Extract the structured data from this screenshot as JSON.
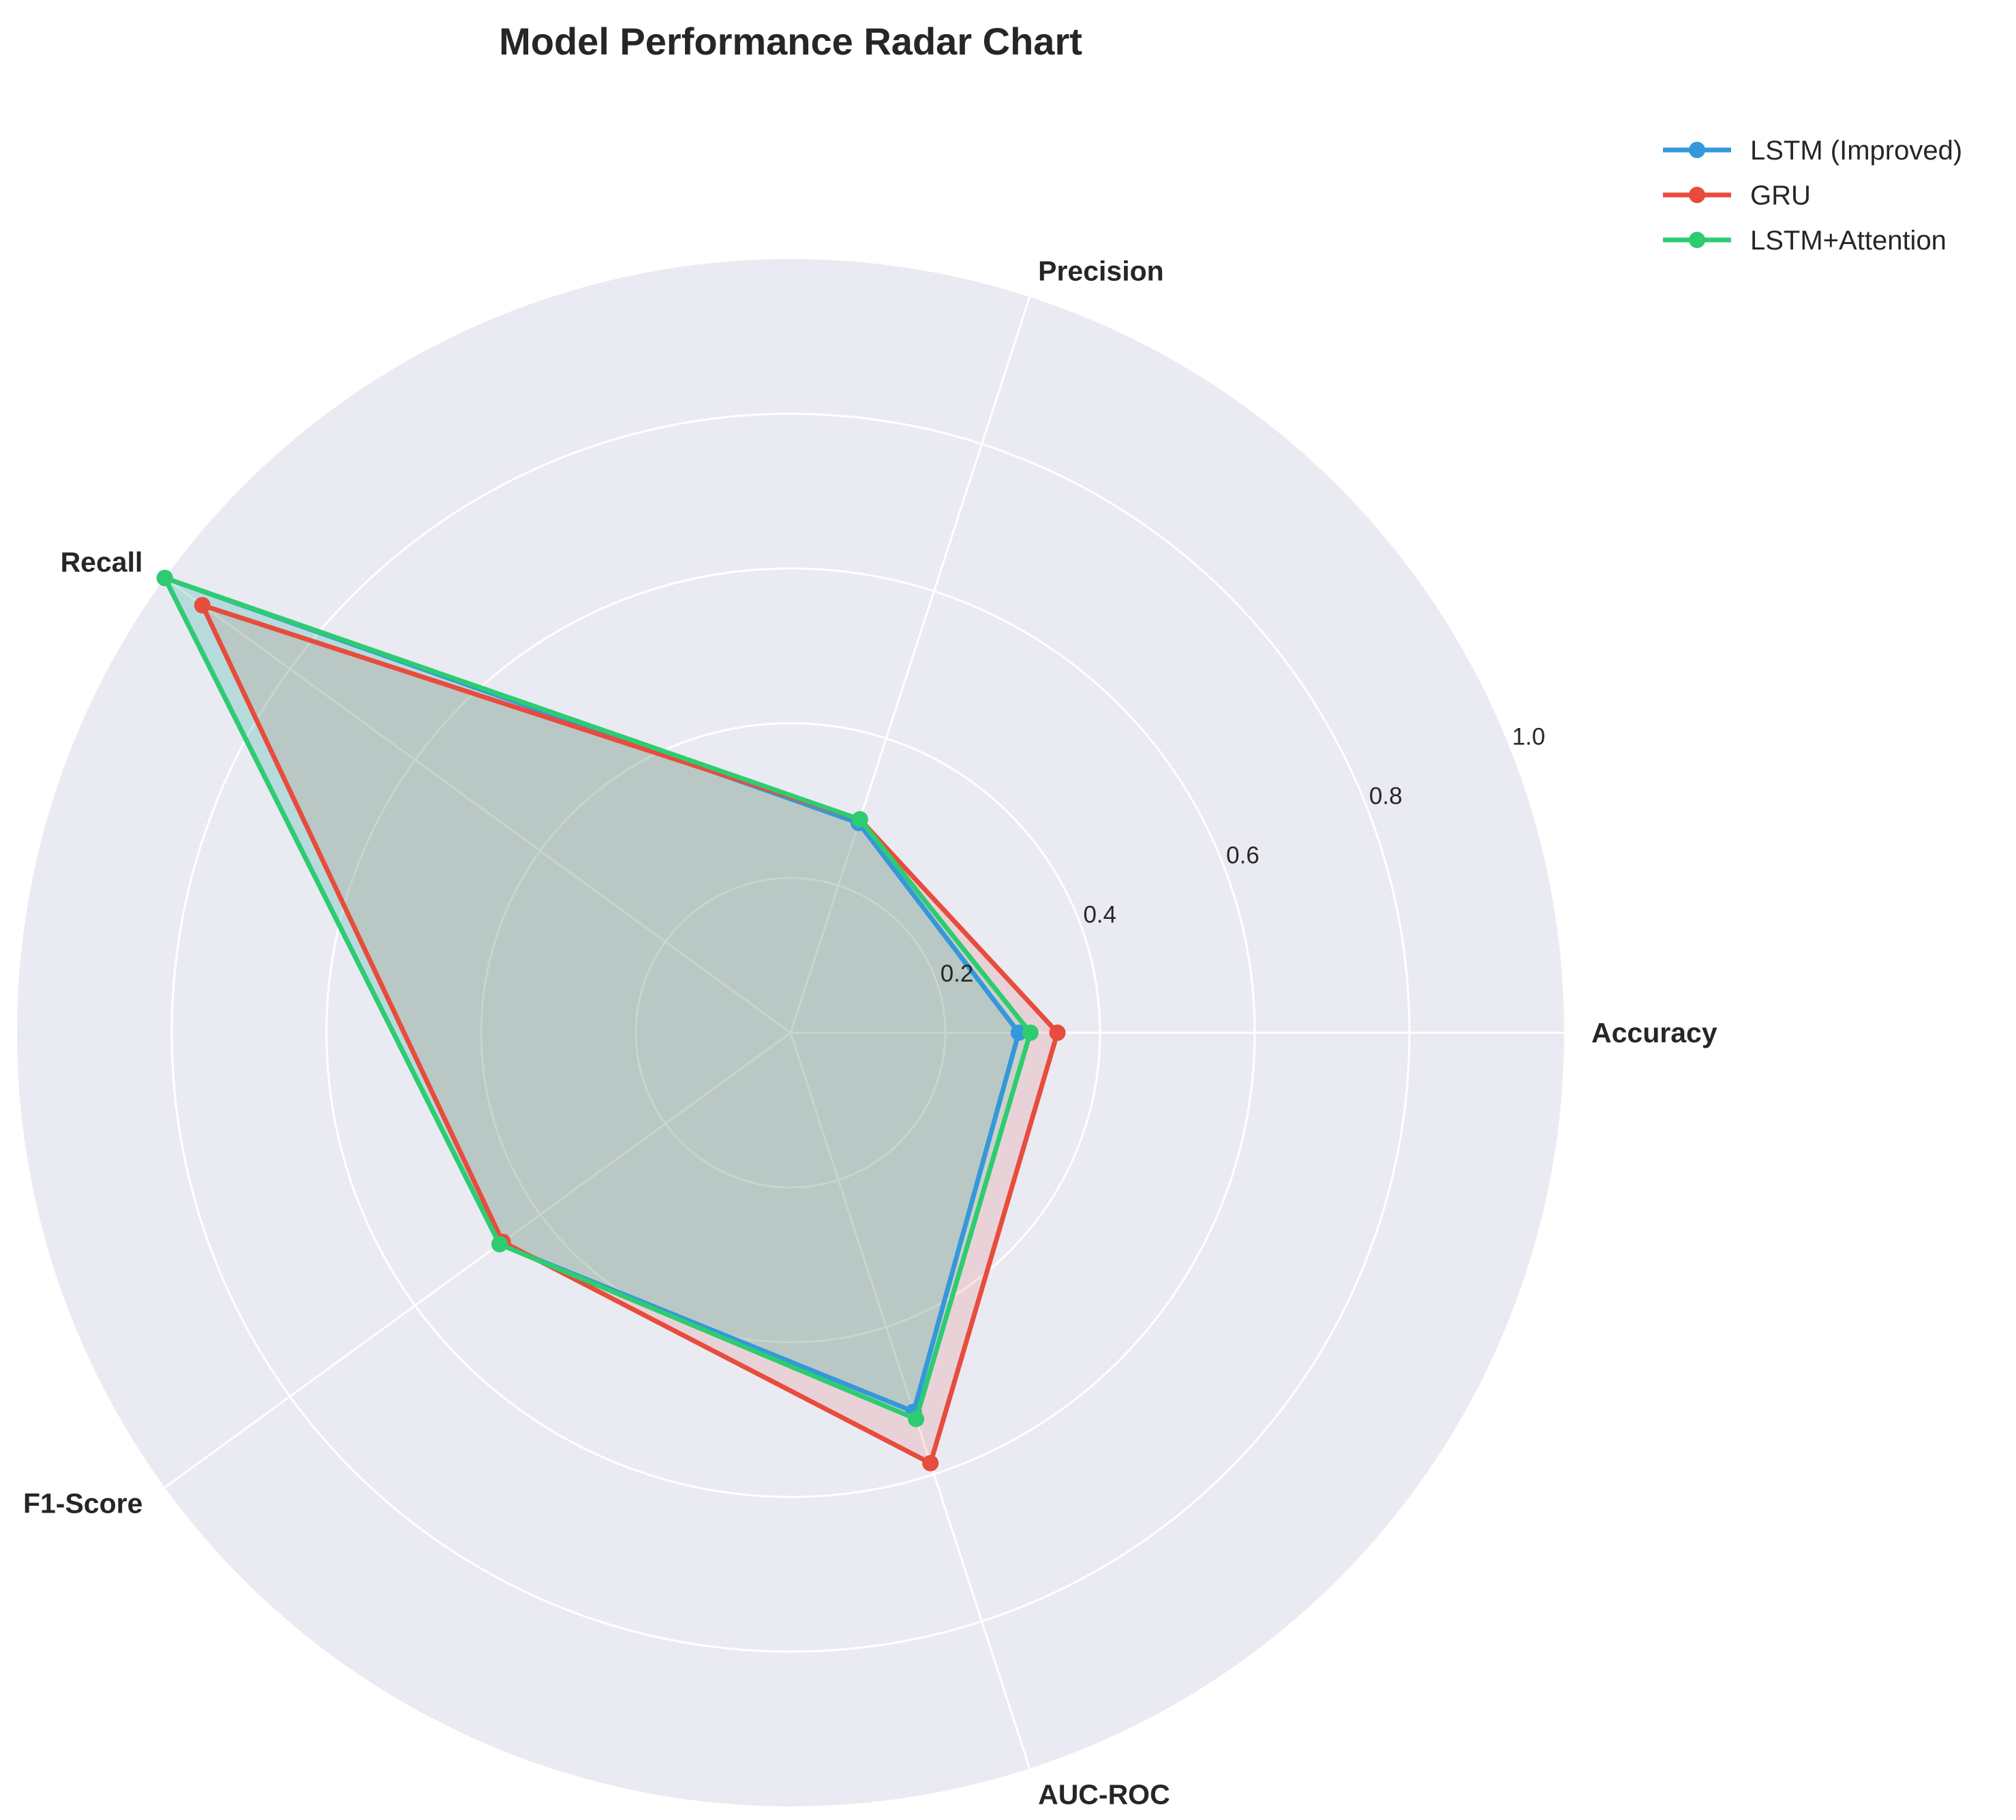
{
  "chart_data": {
    "type": "radar",
    "title": "Model Performance Radar Chart",
    "axes": [
      "Accuracy",
      "Precision",
      "Recall",
      "F1-Score",
      "AUC-ROC"
    ],
    "rlim": [
      0,
      1.0
    ],
    "rticks": [
      0.2,
      0.4,
      0.6,
      0.8,
      1.0
    ],
    "rtick_labels": [
      "0.2",
      "0.4",
      "0.6",
      "0.8",
      "1.0"
    ],
    "grid": true,
    "legend_position": "top-right, outside",
    "series": [
      {
        "name": "LSTM (Improved)",
        "color": "#3498db",
        "values": [
          0.295,
          0.285,
          1.0,
          0.465,
          0.515
        ]
      },
      {
        "name": "GRU",
        "color": "#e74c3c",
        "values": [
          0.345,
          0.29,
          0.94,
          0.46,
          0.585
        ]
      },
      {
        "name": "LSTM+Attention",
        "color": "#2ecc71",
        "values": [
          0.31,
          0.29,
          1.0,
          0.465,
          0.525
        ]
      }
    ],
    "background_color": "#eaeaf2"
  }
}
